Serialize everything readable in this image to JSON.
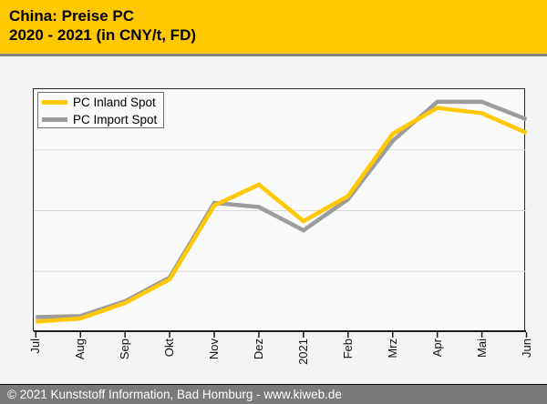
{
  "header": {
    "title_line1": "China: Preise PC",
    "title_line2": "2020 - 2021 (in CNY/t, FD)",
    "bg_color": "#FFC800"
  },
  "footer": {
    "text": "© 2021 Kunststoff Information, Bad Homburg - www.kiweb.de",
    "bg_color": "#7A7A7A"
  },
  "legend": {
    "items": [
      {
        "label": "PC Inland Spot",
        "color": "#FFC800"
      },
      {
        "label": "PC Import Spot",
        "color": "#9C9C9C"
      }
    ]
  },
  "chart_data": {
    "type": "line",
    "title": "China: Preise PC 2020 - 2021 (in CNY/t, FD)",
    "categories": [
      "Jul",
      "Aug",
      "Sep",
      "Okt",
      "Nov",
      "Dez",
      "2021",
      "Feb",
      "Mrz",
      "Apr",
      "Mai",
      "Jun"
    ],
    "series": [
      {
        "name": "PC Inland Spot",
        "color": "#FFC800",
        "values": [
          0.043,
          0.056,
          0.12,
          0.217,
          0.521,
          0.607,
          0.457,
          0.56,
          0.816,
          0.923,
          0.901,
          0.82
        ]
      },
      {
        "name": "PC Import Spot",
        "color": "#9C9C9C",
        "values": [
          0.062,
          0.066,
          0.127,
          0.225,
          0.532,
          0.515,
          0.419,
          0.547,
          0.787,
          0.948,
          0.948,
          0.876
        ]
      }
    ],
    "values_note": "No numeric y-axis labels are shown in the chart; values are fractions of plot height (0 = bottom axis, 1 = top border).",
    "xlabel": "",
    "ylabel": "",
    "ylim": [
      0,
      1
    ],
    "grid": "horizontal gridlines at 0.25, 0.50, 0.75",
    "gridline_color": "#D9D9D9",
    "legend_position": "top-left inside plot",
    "x_labels_rotated": true
  }
}
